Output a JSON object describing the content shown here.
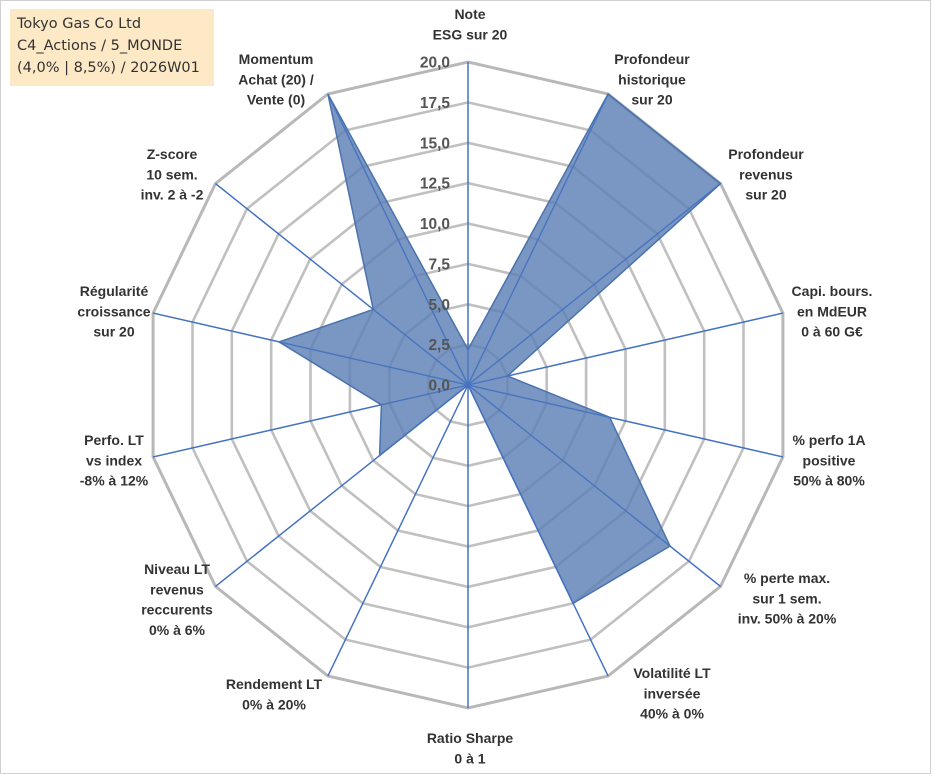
{
  "info": {
    "line1": "Tokyo Gas Co Ltd",
    "line2": "C4_Actions / 5_MONDE",
    "line3": "(4,0% | 8,5%) / 2026W01"
  },
  "colors": {
    "fill": "#5b80b5",
    "stroke": "#4a72ad",
    "spoke": "#4472c4",
    "grid": "#c0c0c0",
    "outer_grid": "#b8b8b8"
  },
  "chart_data": {
    "type": "radar",
    "title": "",
    "rmin": 0,
    "rmax": 20,
    "tick_step": 2.5,
    "tick_labels": [
      "0,0",
      "2,5",
      "5,0",
      "7,5",
      "10,0",
      "12,5",
      "15,0",
      "17,5",
      "20,0"
    ],
    "axes": [
      {
        "label": [
          "Note",
          "ESG sur 20"
        ],
        "value": 2.2
      },
      {
        "label": [
          "Profondeur",
          "historique",
          "sur 20"
        ],
        "value": 20.0
      },
      {
        "label": [
          "Profondeur",
          "revenus",
          "sur 20"
        ],
        "value": 20.0
      },
      {
        "label": [
          "Capi. bours.",
          "en MdEUR",
          "0 à 60 G€"
        ],
        "value": 2.5
      },
      {
        "label": [
          "% perfo 1A",
          "positive",
          "50% à 80%"
        ],
        "value": 9.0
      },
      {
        "label": [
          "% perte max.",
          "sur 1 sem.",
          "inv. 50% à 20%"
        ],
        "value": 16.0
      },
      {
        "label": [
          "Volatilité LT",
          "inversée",
          "40% à 0%"
        ],
        "value": 15.0
      },
      {
        "label": [
          "Ratio Sharpe",
          "0 à 1"
        ],
        "value": 0.0
      },
      {
        "label": [
          "Rendement LT",
          "0% à 20%"
        ],
        "value": 0.0
      },
      {
        "label": [
          "Niveau LT",
          "revenus",
          "reccurents",
          "0% à 6%"
        ],
        "value": 7.0
      },
      {
        "label": [
          "Perfo. LT",
          "vs index",
          "-8% à 12%"
        ],
        "value": 5.5
      },
      {
        "label": [
          "Régularité",
          "croissance",
          "sur 20"
        ],
        "value": 12.0
      },
      {
        "label": [
          "Z-score",
          "10 sem.",
          "inv. 2 à -2"
        ],
        "value": 7.5
      },
      {
        "label": [
          "Momentum",
          "Achat (20) /",
          "Vente (0)"
        ],
        "value": 20.0
      }
    ]
  }
}
